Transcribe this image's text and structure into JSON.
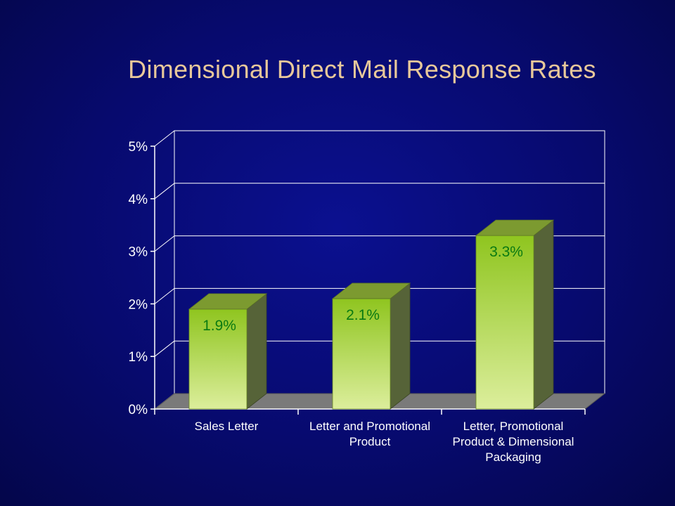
{
  "slide": {
    "title": "Dimensional Direct Mail Response Rates"
  },
  "chart_data": {
    "type": "bar",
    "title": "Dimensional Direct Mail Response Rates",
    "categories": [
      [
        "Sales Letter"
      ],
      [
        "Letter and Promotional",
        "Product"
      ],
      [
        "Letter, Promotional",
        "Product & Dimensional",
        "Packaging"
      ]
    ],
    "values": [
      1.9,
      2.1,
      3.3
    ],
    "data_labels": [
      "1.9%",
      "2.1%",
      "3.3%"
    ],
    "y_ticks": [
      "0%",
      "1%",
      "2%",
      "3%",
      "4%",
      "5%"
    ],
    "ylim": [
      0,
      5
    ],
    "xlabel": "",
    "ylabel": "",
    "grid": true,
    "style": "3d-bar",
    "colors": {
      "bar_front_top": "#8fc51f",
      "bar_front_bottom": "#d8ec98",
      "bar_side": "#566338",
      "bar_top": "#7c9a30",
      "floor": "#7a7a7a",
      "gridline": "#ffffff",
      "data_label": "#0a7a12"
    }
  }
}
